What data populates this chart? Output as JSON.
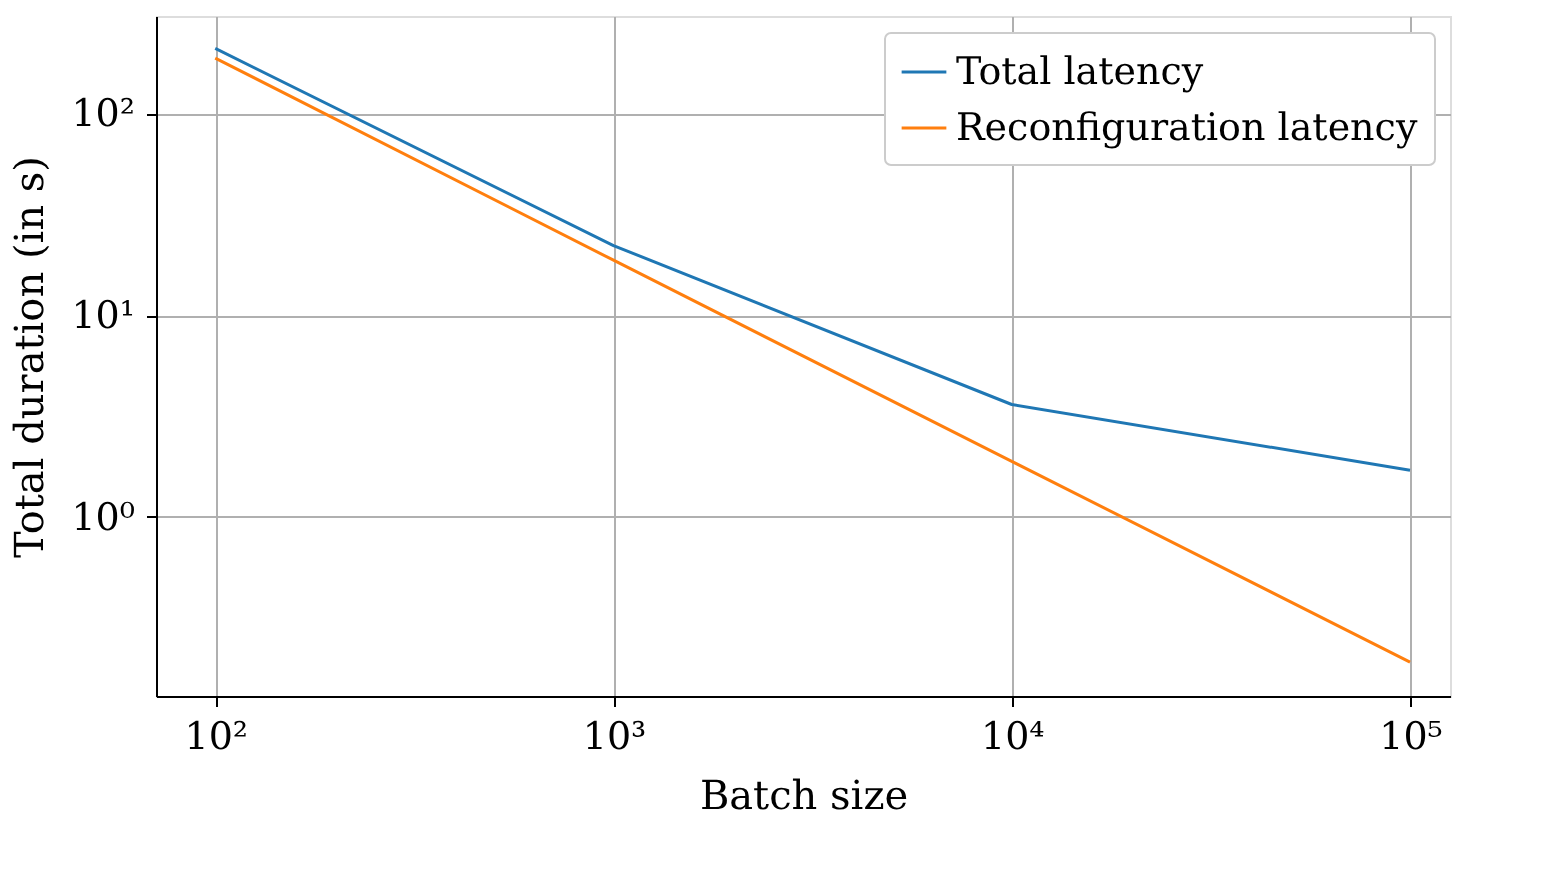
{
  "chart_data": {
    "type": "line",
    "xlabel": "Batch size",
    "ylabel": "Total duration (in s)",
    "x": [
      100,
      1000,
      10000,
      100000
    ],
    "series": [
      {
        "name": "Total latency",
        "color": "#1f77b4",
        "values": [
          210,
          22.1,
          3.6,
          1.7
        ]
      },
      {
        "name": "Reconfiguration latency",
        "color": "#ff7f0e",
        "values": [
          188,
          18.7,
          1.88,
          0.19
        ]
      }
    ],
    "xlim": [
      71,
      126000
    ],
    "ylim": [
      0.129,
      304
    ],
    "xticks": [
      {
        "value": 100,
        "label": "10²"
      },
      {
        "value": 1000,
        "label": "10³"
      },
      {
        "value": 10000,
        "label": "10⁴"
      },
      {
        "value": 100000,
        "label": "10⁵"
      }
    ],
    "yticks": [
      {
        "value": 1,
        "label": "10⁰"
      },
      {
        "value": 10,
        "label": "10¹"
      },
      {
        "value": 100,
        "label": "10²"
      }
    ],
    "log": "xy",
    "grid": true,
    "legend": "top right",
    "marker": "none",
    "line_style": "solid"
  }
}
